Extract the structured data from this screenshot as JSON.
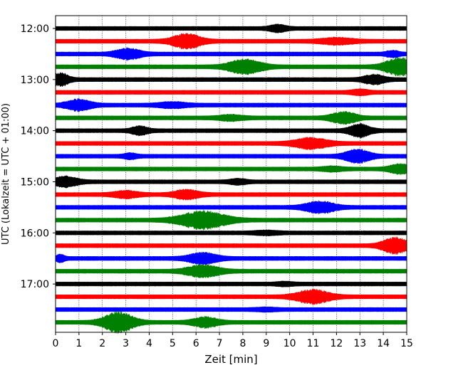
{
  "chart_data": {
    "type": "line",
    "title": "",
    "xlabel": "Zeit  [min]",
    "ylabel": "UTC (Lokalzeit = UTC + 01:00)",
    "xlim": [
      0,
      15
    ],
    "x_ticks": [
      0,
      1,
      2,
      3,
      4,
      5,
      6,
      7,
      8,
      9,
      10,
      11,
      12,
      13,
      14,
      15
    ],
    "y_tick_labels": [
      "12:00",
      "13:00",
      "14:00",
      "15:00",
      "16:00",
      "17:00"
    ],
    "grid": "vertical dotted",
    "trace_colors": [
      "#000000",
      "#ff0000",
      "#0000ff",
      "#008000"
    ],
    "series": [
      {
        "start": "12:00",
        "color": "#000000",
        "events": [
          [
            9.5,
            0.4,
            0.35
          ]
        ]
      },
      {
        "start": "12:15",
        "color": "#ff0000",
        "events": [
          [
            5.6,
            0.7,
            0.8
          ],
          [
            12.0,
            0.8,
            0.3
          ]
        ]
      },
      {
        "start": "12:30",
        "color": "#0000ff",
        "events": [
          [
            3.1,
            0.6,
            0.6
          ],
          [
            14.4,
            0.3,
            0.3
          ]
        ]
      },
      {
        "start": "12:45",
        "color": "#008000",
        "events": [
          [
            8.1,
            0.8,
            0.8
          ],
          [
            14.7,
            0.7,
            1.0
          ]
        ]
      },
      {
        "start": "13:00",
        "color": "#000000",
        "events": [
          [
            0.2,
            0.4,
            0.7
          ],
          [
            13.6,
            0.5,
            0.5
          ]
        ]
      },
      {
        "start": "13:15",
        "color": "#ff0000",
        "events": [
          [
            13.0,
            0.4,
            0.25
          ]
        ]
      },
      {
        "start": "13:30",
        "color": "#0000ff",
        "events": [
          [
            1.0,
            0.6,
            0.6
          ],
          [
            5.0,
            0.7,
            0.25
          ]
        ]
      },
      {
        "start": "13:45",
        "color": "#008000",
        "events": [
          [
            12.3,
            0.6,
            0.65
          ],
          [
            7.5,
            0.6,
            0.25
          ]
        ]
      },
      {
        "start": "14:00",
        "color": "#000000",
        "events": [
          [
            3.6,
            0.4,
            0.45
          ],
          [
            13.0,
            0.5,
            0.7
          ]
        ]
      },
      {
        "start": "14:15",
        "color": "#ff0000",
        "events": [
          [
            10.9,
            0.8,
            0.6
          ]
        ]
      },
      {
        "start": "14:30",
        "color": "#0000ff",
        "events": [
          [
            12.9,
            0.6,
            0.75
          ],
          [
            3.2,
            0.3,
            0.25
          ]
        ]
      },
      {
        "start": "14:45",
        "color": "#008000",
        "events": [
          [
            14.7,
            0.5,
            0.5
          ],
          [
            11.8,
            0.5,
            0.2
          ]
        ]
      },
      {
        "start": "15:00",
        "color": "#000000",
        "events": [
          [
            0.4,
            0.6,
            0.55
          ],
          [
            7.8,
            0.4,
            0.25
          ]
        ]
      },
      {
        "start": "15:15",
        "color": "#ff0000",
        "events": [
          [
            5.6,
            0.6,
            0.5
          ],
          [
            3.0,
            0.6,
            0.35
          ]
        ]
      },
      {
        "start": "15:30",
        "color": "#0000ff",
        "events": [
          [
            11.3,
            0.7,
            0.65
          ]
        ]
      },
      {
        "start": "15:45",
        "color": "#008000",
        "events": [
          [
            6.3,
            1.1,
            1.0
          ]
        ]
      },
      {
        "start": "16:00",
        "color": "#000000",
        "events": [
          [
            9.0,
            0.6,
            0.15
          ]
        ]
      },
      {
        "start": "16:15",
        "color": "#ff0000",
        "events": [
          [
            14.5,
            0.6,
            0.9
          ]
        ]
      },
      {
        "start": "16:30",
        "color": "#0000ff",
        "events": [
          [
            6.3,
            0.7,
            0.6
          ],
          [
            0.2,
            0.2,
            0.4
          ]
        ]
      },
      {
        "start": "16:45",
        "color": "#008000",
        "events": [
          [
            6.3,
            0.8,
            0.65
          ]
        ]
      },
      {
        "start": "17:00",
        "color": "#000000",
        "events": [
          [
            9.8,
            0.4,
            0.15
          ]
        ]
      },
      {
        "start": "17:15",
        "color": "#ff0000",
        "events": [
          [
            11.0,
            0.8,
            0.75
          ]
        ]
      },
      {
        "start": "17:30",
        "color": "#0000ff",
        "events": [
          [
            9.0,
            0.5,
            0.12
          ]
        ]
      },
      {
        "start": "17:45",
        "color": "#008000",
        "events": [
          [
            2.7,
            0.7,
            1.2
          ],
          [
            6.4,
            0.6,
            0.55
          ]
        ]
      }
    ]
  }
}
